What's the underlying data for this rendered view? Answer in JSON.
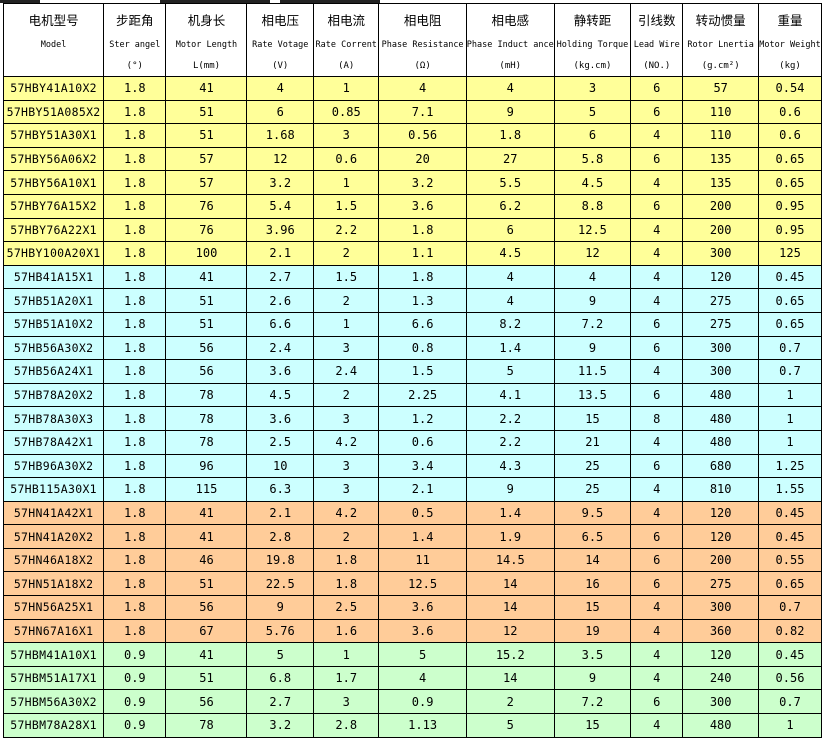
{
  "header": {
    "cn": [
      "电机型号",
      "步距角",
      "机身长",
      "相电压",
      "相电流",
      "相电阻",
      "相电感",
      "静转距",
      "引线数",
      "转动惯量",
      "重量"
    ],
    "en": [
      "Model",
      "Ster angel",
      "Motor Length",
      "Rate Votage",
      "Rate Corrent",
      "Phase Resistance",
      "Phase Induct ance",
      "Holding Torque",
      "Lead Wire",
      "Rotor Lnertia",
      "Motor Weight"
    ],
    "units": [
      "",
      "(°)",
      "L(mm)",
      "(V)",
      "(A)",
      "(Ω)",
      "(mH)",
      "(kg.cm)",
      "(NO.)",
      "(g.cm²)",
      "(kg)"
    ]
  },
  "group_colors": [
    "#ffff99",
    "#ccffff",
    "#ffcc99",
    "#ccffcc"
  ],
  "rows": [
    {
      "group": 0,
      "cells": [
        "57HBY41A10X2",
        "1.8",
        "41",
        "4",
        "1",
        "4",
        "4",
        "3",
        "6",
        "57",
        "0.54"
      ]
    },
    {
      "group": 0,
      "cells": [
        "57HBY51A085X2",
        "1.8",
        "51",
        "6",
        "0.85",
        "7.1",
        "9",
        "5",
        "6",
        "110",
        "0.6"
      ]
    },
    {
      "group": 0,
      "cells": [
        "57HBY51A30X1",
        "1.8",
        "51",
        "1.68",
        "3",
        "0.56",
        "1.8",
        "6",
        "4",
        "110",
        "0.6"
      ]
    },
    {
      "group": 0,
      "cells": [
        "57HBY56A06X2",
        "1.8",
        "57",
        "12",
        "0.6",
        "20",
        "27",
        "5.8",
        "6",
        "135",
        "0.65"
      ]
    },
    {
      "group": 0,
      "cells": [
        "57HBY56A10X1",
        "1.8",
        "57",
        "3.2",
        "1",
        "3.2",
        "5.5",
        "4.5",
        "4",
        "135",
        "0.65"
      ]
    },
    {
      "group": 0,
      "cells": [
        "57HBY76A15X2",
        "1.8",
        "76",
        "5.4",
        "1.5",
        "3.6",
        "6.2",
        "8.8",
        "6",
        "200",
        "0.95"
      ]
    },
    {
      "group": 0,
      "cells": [
        "57HBY76A22X1",
        "1.8",
        "76",
        "3.96",
        "2.2",
        "1.8",
        "6",
        "12.5",
        "4",
        "200",
        "0.95"
      ]
    },
    {
      "group": 0,
      "cells": [
        "57HBY100A20X1",
        "1.8",
        "100",
        "2.1",
        "2",
        "1.1",
        "4.5",
        "12",
        "4",
        "300",
        "125"
      ]
    },
    {
      "group": 1,
      "cells": [
        "57HB41A15X1",
        "1.8",
        "41",
        "2.7",
        "1.5",
        "1.8",
        "4",
        "4",
        "4",
        "120",
        "0.45"
      ]
    },
    {
      "group": 1,
      "cells": [
        "57HB51A20X1",
        "1.8",
        "51",
        "2.6",
        "2",
        "1.3",
        "4",
        "9",
        "4",
        "275",
        "0.65"
      ]
    },
    {
      "group": 1,
      "cells": [
        "57HB51A10X2",
        "1.8",
        "51",
        "6.6",
        "1",
        "6.6",
        "8.2",
        "7.2",
        "6",
        "275",
        "0.65"
      ]
    },
    {
      "group": 1,
      "cells": [
        "57HB56A30X2",
        "1.8",
        "56",
        "2.4",
        "3",
        "0.8",
        "1.4",
        "9",
        "6",
        "300",
        "0.7"
      ]
    },
    {
      "group": 1,
      "cells": [
        "57HB56A24X1",
        "1.8",
        "56",
        "3.6",
        "2.4",
        "1.5",
        "5",
        "11.5",
        "4",
        "300",
        "0.7"
      ]
    },
    {
      "group": 1,
      "cells": [
        "57HB78A20X2",
        "1.8",
        "78",
        "4.5",
        "2",
        "2.25",
        "4.1",
        "13.5",
        "6",
        "480",
        "1"
      ]
    },
    {
      "group": 1,
      "cells": [
        "57HB78A30X3",
        "1.8",
        "78",
        "3.6",
        "3",
        "1.2",
        "2.2",
        "15",
        "8",
        "480",
        "1"
      ]
    },
    {
      "group": 1,
      "cells": [
        "57HB78A42X1",
        "1.8",
        "78",
        "2.5",
        "4.2",
        "0.6",
        "2.2",
        "21",
        "4",
        "480",
        "1"
      ]
    },
    {
      "group": 1,
      "cells": [
        "57HB96A30X2",
        "1.8",
        "96",
        "10",
        "3",
        "3.4",
        "4.3",
        "25",
        "6",
        "680",
        "1.25"
      ]
    },
    {
      "group": 1,
      "cells": [
        "57HB115A30X1",
        "1.8",
        "115",
        "6.3",
        "3",
        "2.1",
        "9",
        "25",
        "4",
        "810",
        "1.55"
      ]
    },
    {
      "group": 2,
      "cells": [
        "57HN41A42X1",
        "1.8",
        "41",
        "2.1",
        "4.2",
        "0.5",
        "1.4",
        "9.5",
        "4",
        "120",
        "0.45"
      ]
    },
    {
      "group": 2,
      "cells": [
        "57HN41A20X2",
        "1.8",
        "41",
        "2.8",
        "2",
        "1.4",
        "1.9",
        "6.5",
        "6",
        "120",
        "0.45"
      ]
    },
    {
      "group": 2,
      "cells": [
        "57HN46A18X2",
        "1.8",
        "46",
        "19.8",
        "1.8",
        "11",
        "14.5",
        "14",
        "6",
        "200",
        "0.55"
      ]
    },
    {
      "group": 2,
      "cells": [
        "57HN51A18X2",
        "1.8",
        "51",
        "22.5",
        "1.8",
        "12.5",
        "14",
        "16",
        "6",
        "275",
        "0.65"
      ]
    },
    {
      "group": 2,
      "cells": [
        "57HN56A25X1",
        "1.8",
        "56",
        "9",
        "2.5",
        "3.6",
        "14",
        "15",
        "4",
        "300",
        "0.7"
      ]
    },
    {
      "group": 2,
      "cells": [
        "57HN67A16X1",
        "1.8",
        "67",
        "5.76",
        "1.6",
        "3.6",
        "12",
        "19",
        "4",
        "360",
        "0.82"
      ]
    },
    {
      "group": 3,
      "cells": [
        "57HBM41A10X1",
        "0.9",
        "41",
        "5",
        "1",
        "5",
        "15.2",
        "3.5",
        "4",
        "120",
        "0.45"
      ]
    },
    {
      "group": 3,
      "cells": [
        "57HBM51A17X1",
        "0.9",
        "51",
        "6.8",
        "1.7",
        "4",
        "14",
        "9",
        "4",
        "240",
        "0.56"
      ]
    },
    {
      "group": 3,
      "cells": [
        "57HBM56A30X2",
        "0.9",
        "56",
        "2.7",
        "3",
        "0.9",
        "2",
        "7.2",
        "6",
        "300",
        "0.7"
      ]
    },
    {
      "group": 3,
      "cells": [
        "57HBM78A28X1",
        "0.9",
        "78",
        "3.2",
        "2.8",
        "1.13",
        "5",
        "15",
        "4",
        "480",
        "1"
      ]
    }
  ]
}
